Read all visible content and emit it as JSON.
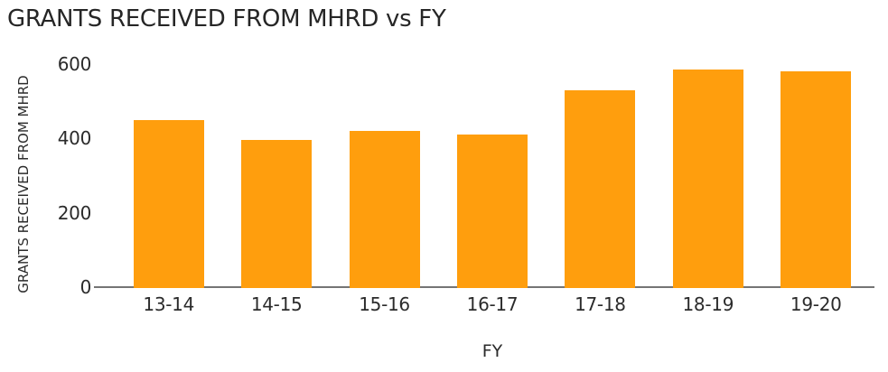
{
  "chart_data": {
    "type": "bar",
    "title": "GRANTS RECEIVED FROM MHRD vs FY",
    "xlabel": "FY",
    "ylabel": "GRANTS RECEIVED FROM MHRD",
    "categories": [
      "13-14",
      "14-15",
      "15-16",
      "16-17",
      "17-18",
      "18-19",
      "19-20"
    ],
    "values": [
      450,
      395,
      420,
      410,
      530,
      585,
      580
    ],
    "ylim": [
      0,
      600
    ],
    "yticks": [
      0,
      200,
      400,
      600
    ],
    "grid": false,
    "legend": false,
    "bar_color": "#FF9E0D"
  },
  "colors": {
    "bar": "#FF9E0D",
    "axis_line": "#757575",
    "title_text": "#262626",
    "label_text": "#2B2B2B",
    "background": "#FFFFFF"
  }
}
